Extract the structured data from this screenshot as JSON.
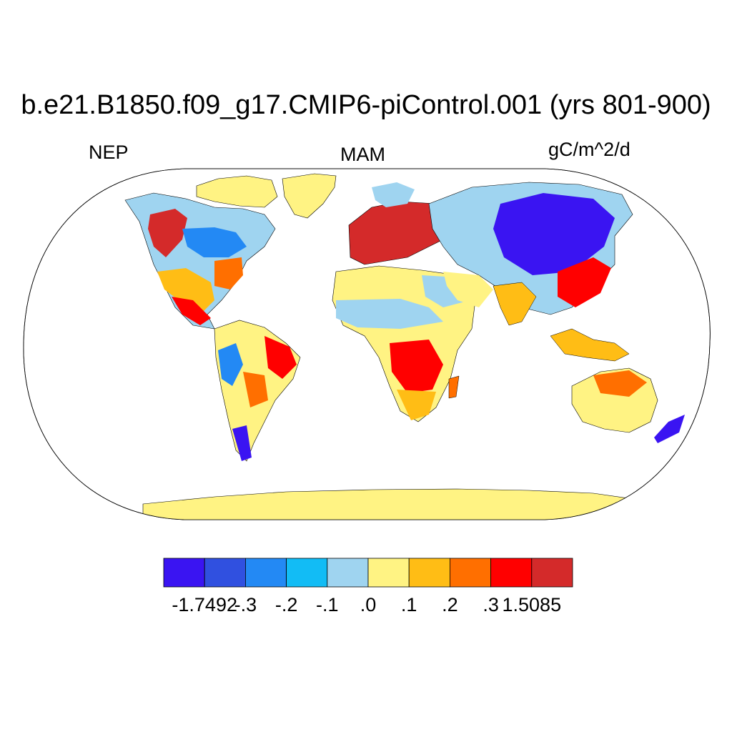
{
  "title": "b.e21.B1850.f09_g17.CMIP6-piControl.001 (yrs 801-900)",
  "left_label": "NEP",
  "center_label": "MAM",
  "right_label": "gC/m^2/d",
  "colorbar": {
    "colors": [
      "#3a14f2",
      "#3050e0",
      "#2389f4",
      "#12bcf5",
      "#9fd4f0",
      "#fff383",
      "#ffbd15",
      "#ff6f00",
      "#ff0000",
      "#d42a2a"
    ],
    "labels": [
      "-1.7492",
      "-.3",
      "-.2",
      "-.1",
      ".0",
      ".1",
      ".2",
      ".3",
      "1.5085"
    ]
  },
  "colors": {
    "ocean": "#ffffff",
    "outline": "#000000"
  }
}
